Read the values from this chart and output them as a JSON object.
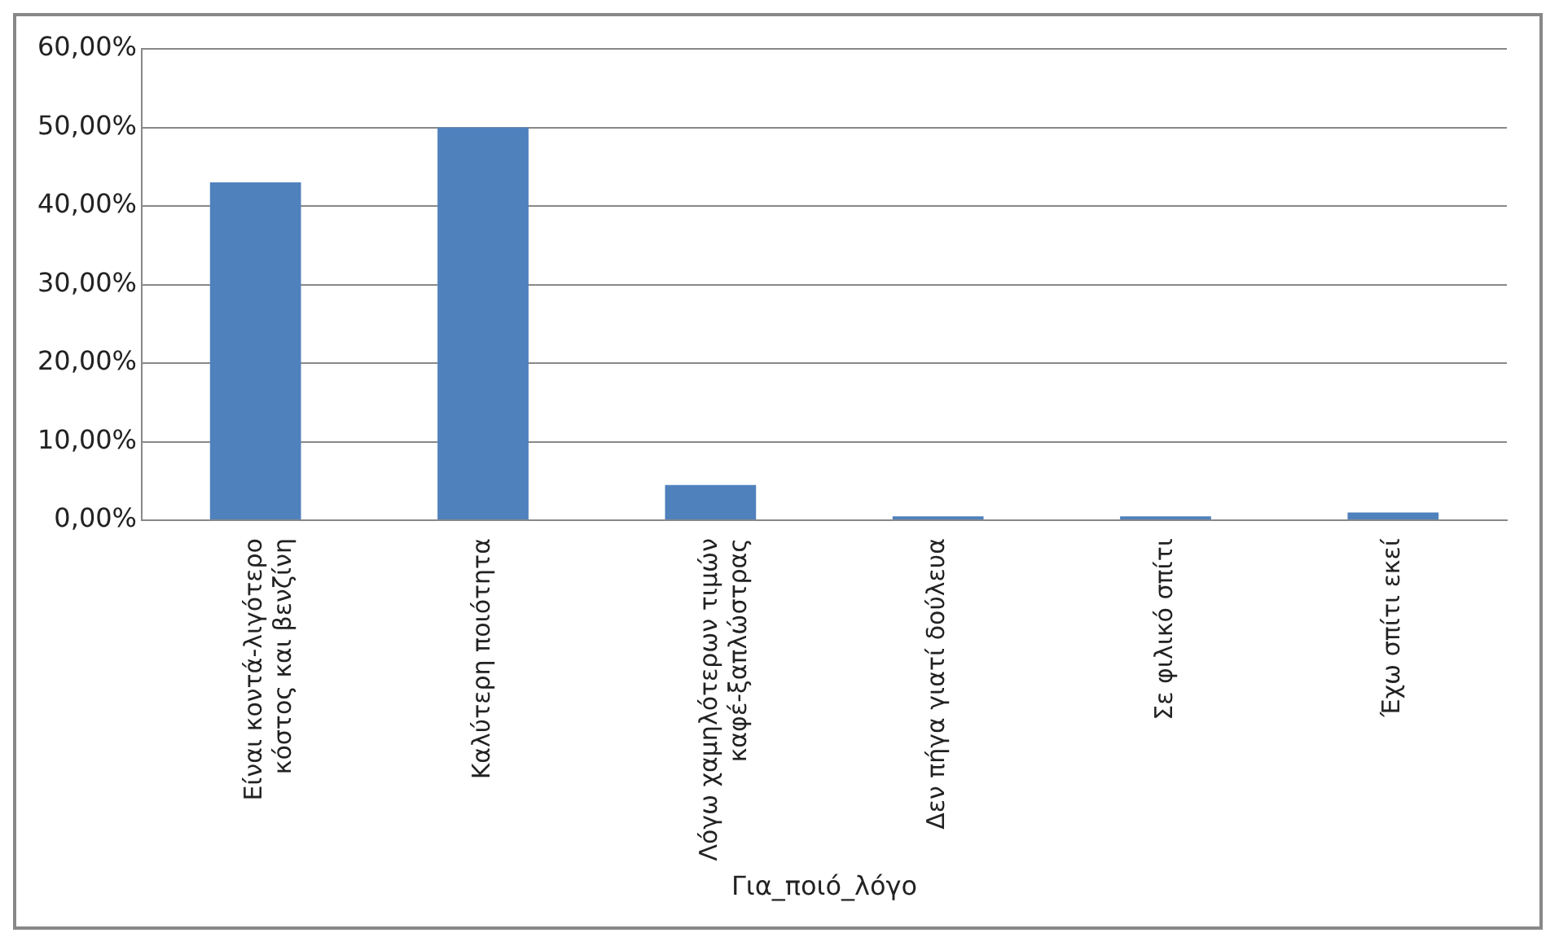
{
  "chart_data": {
    "type": "bar",
    "xlabel": "Για_ποιό_λόγο",
    "categories": [
      "Είναι κοντά-λιγότερο κόστος και βενζίνη",
      "Καλύτερη ποιότητα",
      "Λόγω χαμηλότερων τιμών καφέ-ξαπλώστρας",
      "Δεν πήγα γιατί δούλευα",
      "Σε φιλικό σπίτι",
      "Έχω σπίτι εκεί"
    ],
    "values": [
      43,
      50,
      4.5,
      0.5,
      0.5,
      1
    ],
    "color": "#4f81bd",
    "ylim": [
      0,
      60
    ],
    "yticks": [
      {
        "value": 0,
        "label": "0,00%"
      },
      {
        "value": 10,
        "label": "10,00%"
      },
      {
        "value": 20,
        "label": "20,00%"
      },
      {
        "value": 30,
        "label": "30,00%"
      },
      {
        "value": 40,
        "label": "40,00%"
      },
      {
        "value": 50,
        "label": "50,00%"
      },
      {
        "value": 60,
        "label": "60,00%"
      }
    ],
    "grid": "y",
    "legend": false
  }
}
